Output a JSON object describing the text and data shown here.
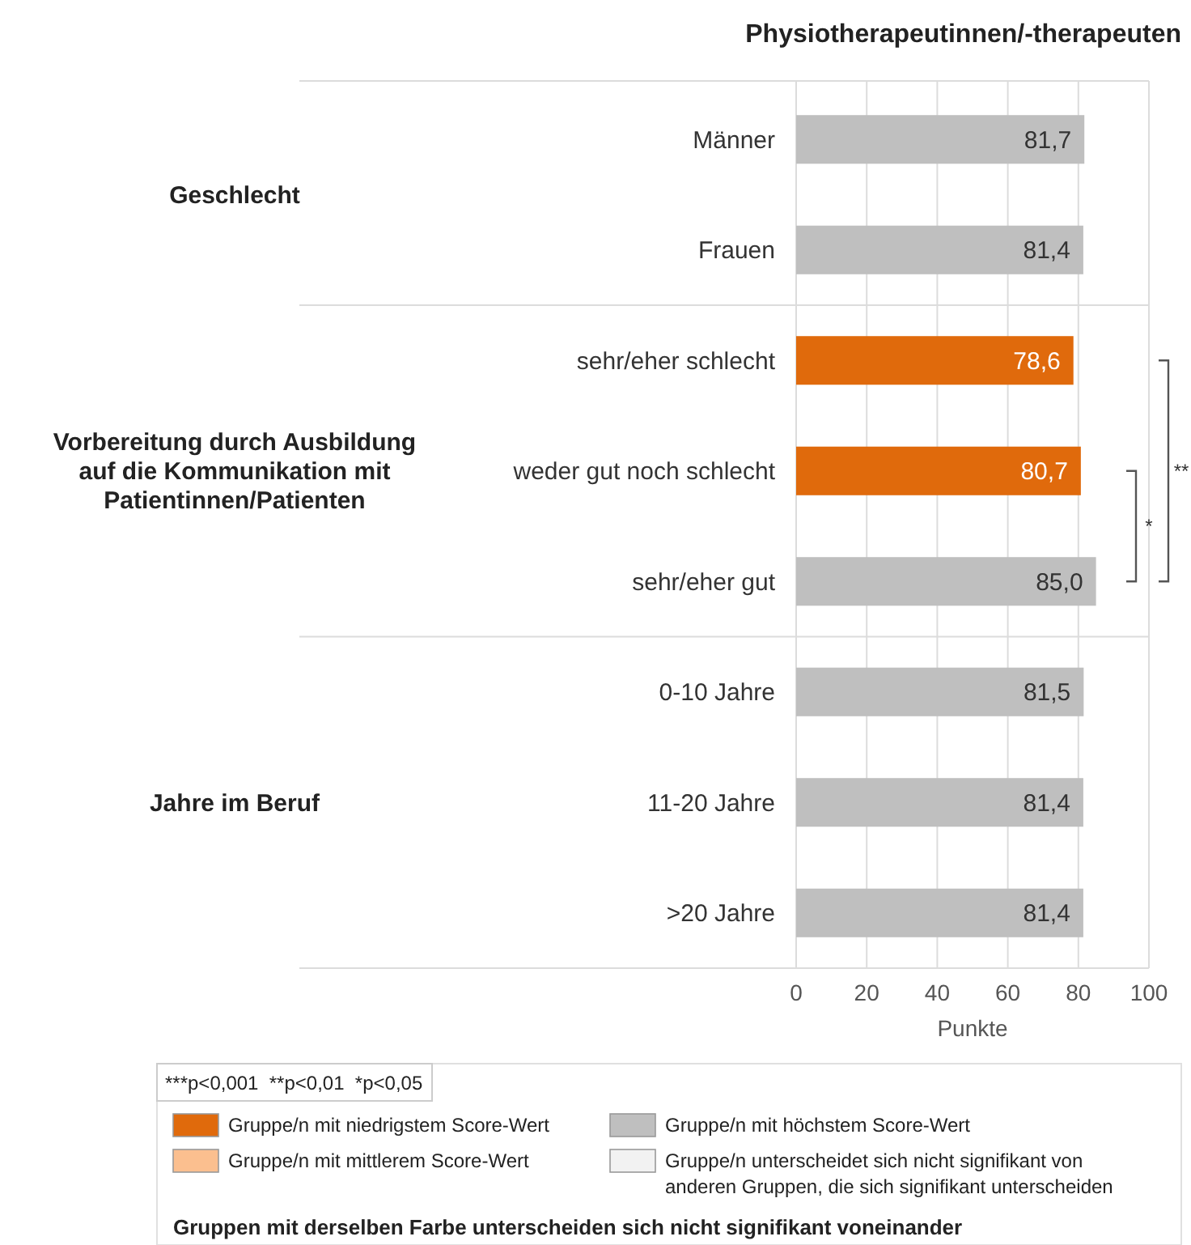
{
  "chart_data": {
    "type": "bar",
    "orientation": "horizontal",
    "title": "Physiotherapeutinnen/-therapeuten",
    "xlabel": "Punkte",
    "categories": [
      "Männer",
      "Frauen",
      "sehr/eher schlecht",
      "weder gut noch schlecht",
      "sehr/eher gut",
      "0-10 Jahre",
      "11-20 Jahre",
      ">20 Jahre"
    ],
    "series": [
      {
        "name": "Gruppe/n mit niedrigstem Score-Wert",
        "color": "#e06a0c",
        "values": [
          null,
          null,
          78.6,
          80.7,
          null,
          null,
          null,
          null
        ],
        "value_labels": [
          null,
          null,
          "78,6",
          "80,7",
          null,
          null,
          null,
          null
        ]
      },
      {
        "name": "Gruppe/n mit mittlerem Score-Wert",
        "color": "#fbbf8f",
        "values": [
          null,
          null,
          null,
          null,
          null,
          null,
          null,
          null
        ]
      },
      {
        "name": "Gruppe/n mit höchstem Score-Wert",
        "color": "#bfbfbf",
        "values": [
          81.7,
          81.4,
          null,
          null,
          85.0,
          81.5,
          81.4,
          81.4
        ],
        "value_labels": [
          "81,7",
          "81,4",
          null,
          null,
          "85,0",
          "81,5",
          "81,4",
          "81,4"
        ]
      },
      {
        "name": "Gruppe/n unterscheidet sich nicht signifikant von anderen Gruppen, die sich signifikant unterscheiden",
        "color": "#f2f2f2",
        "values": [
          null,
          null,
          null,
          null,
          null,
          null,
          null,
          null
        ]
      }
    ],
    "xlim": [
      0,
      100
    ],
    "xticks": [
      0,
      20,
      40,
      60,
      80,
      100
    ],
    "grid": "x",
    "legend": "bottom",
    "annotations": [
      "Geschlecht",
      "Vorbereitung durch Ausbildung auf die Kommunikation mit Patientinnen/Patienten",
      "Jahre im Beruf",
      "**",
      "*",
      "***p<0,001  **p<0,01  *p<0,05",
      "Gruppen mit derselben Farbe unterscheiden sich nicht signifikant voneinander"
    ]
  }
}
